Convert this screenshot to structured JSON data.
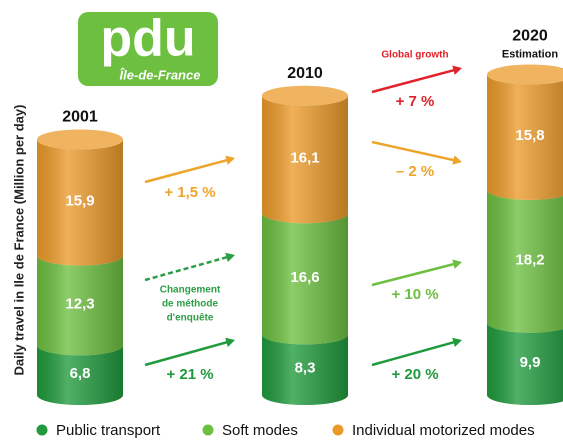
{
  "chart_data": {
    "type": "bar",
    "stacked": true,
    "logo": {
      "text": "pdu",
      "subtitle": "Île-de-France"
    },
    "y_label": "Daily travel in Ile de France (Million per day)",
    "categories": [
      "2001",
      "2010",
      "2020"
    ],
    "category_notes": [
      null,
      null,
      "Estimation"
    ],
    "series": [
      {
        "name": "Public transport",
        "color": "#1f9a3c",
        "values": [
          6.8,
          8.3,
          9.9
        ],
        "value_labels": [
          "6,8",
          "8,3",
          "9,9"
        ]
      },
      {
        "name": "Soft modes",
        "color": "#6cbf3f",
        "values": [
          12.3,
          16.6,
          18.2
        ],
        "value_labels": [
          "12,3",
          "16,6",
          "18,2"
        ]
      },
      {
        "name": "Individual motorized modes",
        "color": "#eb9a2a",
        "values": [
          15.9,
          16.1,
          15.8
        ],
        "value_labels": [
          "15,9",
          "16,1",
          "15,8"
        ]
      }
    ],
    "annotations": [
      {
        "lines": [
          "+ 1,5 %"
        ],
        "color": "#eda42b"
      },
      {
        "lines": [
          "Changement",
          "de méthode",
          "d'enquête"
        ],
        "color": "#2c9e45"
      },
      {
        "lines": [
          "+ 21 %"
        ],
        "color": "#1f9a3c"
      },
      {
        "lines": [
          "Global growth"
        ],
        "color": "#e2222b"
      },
      {
        "lines": [
          "+ 7 %"
        ],
        "color": "#e2222b"
      },
      {
        "lines": [
          "– 2 %"
        ],
        "color": "#eda42b"
      },
      {
        "lines": [
          "+ 10 %"
        ],
        "color": "#6cbf3f"
      },
      {
        "lines": [
          "+ 20 %"
        ],
        "color": "#1f9a3c"
      }
    ],
    "legend": "bottom"
  }
}
